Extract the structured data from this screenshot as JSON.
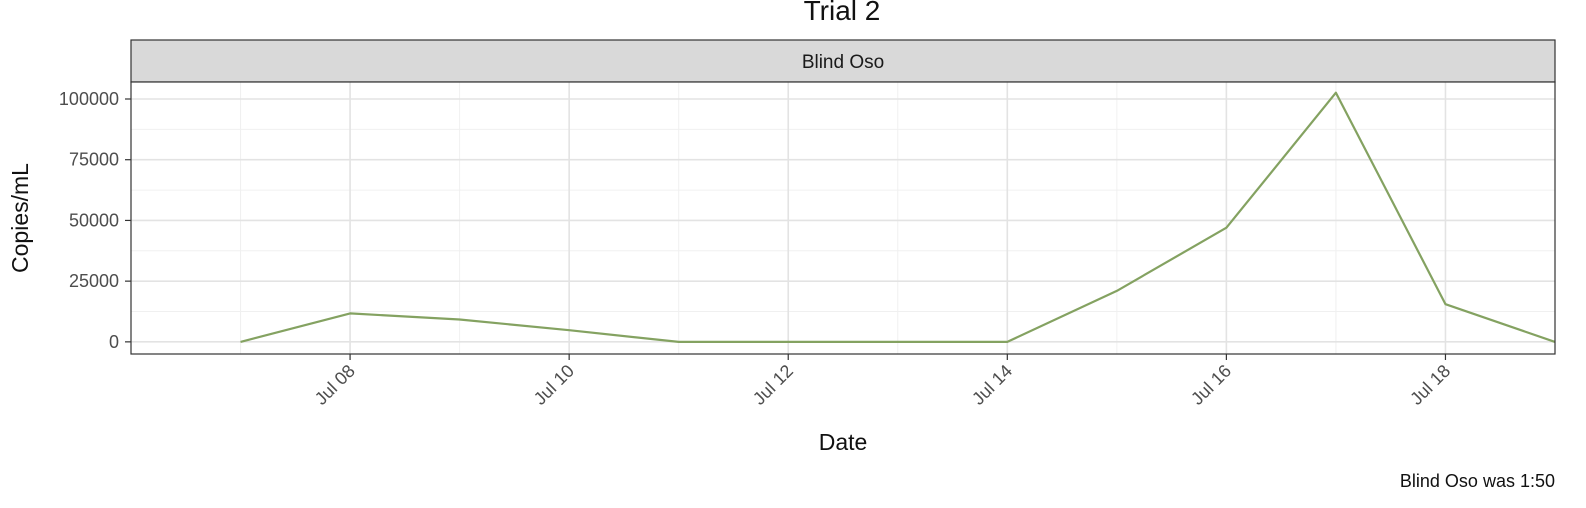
{
  "chart_data": {
    "type": "line",
    "title": "Trial 2",
    "facet_label": "Blind Oso",
    "xlabel": "Date",
    "ylabel": "Copies/mL",
    "caption": "Blind Oso was 1:50",
    "x_tick_labels": [
      "Jul 08",
      "Jul 10",
      "Jul 12",
      "Jul 14",
      "Jul 16",
      "Jul 18"
    ],
    "x_ticks": [
      "2021-07-08",
      "2021-07-10",
      "2021-07-12",
      "2021-07-14",
      "2021-07-16",
      "2021-07-18"
    ],
    "y_ticks": [
      0,
      25000,
      50000,
      75000,
      100000
    ],
    "xlim": [
      "2021-07-06",
      "2021-07-19"
    ],
    "ylim": [
      -5000,
      107000
    ],
    "grid": true,
    "legend": "none",
    "series": [
      {
        "color": "#84a261",
        "x": [
          "2021-07-07",
          "2021-07-08",
          "2021-07-09",
          "2021-07-10",
          "2021-07-11",
          "2021-07-12",
          "2021-07-13",
          "2021-07-14",
          "2021-07-15",
          "2021-07-16",
          "2021-07-17",
          "2021-07-18",
          "2021-07-19"
        ],
        "y": [
          0,
          11700,
          9200,
          4800,
          0,
          0,
          0,
          0,
          21000,
          47000,
          102600,
          15500,
          0
        ]
      }
    ]
  }
}
